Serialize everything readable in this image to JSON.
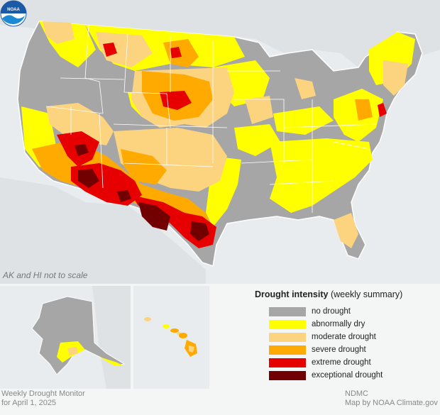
{
  "map_note": "AK and HI not to scale",
  "legend": {
    "title_bold": "Drought intensity",
    "title_rest": " (weekly summary)",
    "items": [
      {
        "label": "no drought",
        "color": "#a6a6a6"
      },
      {
        "label": "abnormally dry",
        "color": "#ffff00"
      },
      {
        "label": "moderate drought",
        "color": "#fcd37f"
      },
      {
        "label": "severe drought",
        "color": "#ffaa00"
      },
      {
        "label": "extreme drought",
        "color": "#e60000"
      },
      {
        "label": "exceptional drought",
        "color": "#730000"
      }
    ]
  },
  "footer": {
    "line1": "Weekly Drought Monitor",
    "line2": "for April 1, 2025",
    "credit1": "NDMC",
    "credit2": "Map by NOAA Climate.gov"
  },
  "colors": {
    "water": "#ffffff",
    "background": "#e9ecee",
    "land_outside": "#dfe2e4",
    "noaa_blue": "#1a5aa6"
  }
}
